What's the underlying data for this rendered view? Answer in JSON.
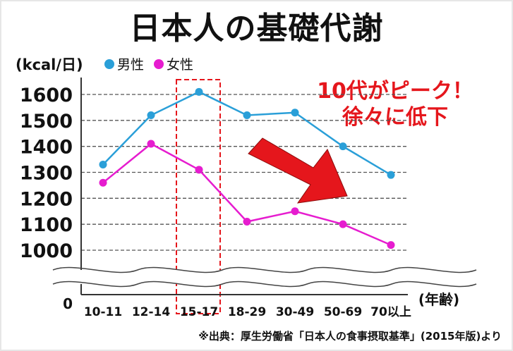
{
  "title": "日本人の基礎代謝",
  "unit_label": "(kcal/日)",
  "legend": [
    {
      "label": "男性",
      "color": "#2a9fd8"
    },
    {
      "label": "女性",
      "color": "#e61ccf"
    }
  ],
  "callout": {
    "line1": "10代がピーク！",
    "line2": "徐々に低下",
    "color": "#e5161c"
  },
  "source": "※出典：厚生労働省「日本人の食事摂取基準」(2015年版)より",
  "chart_data": {
    "type": "line",
    "title": "日本人の基礎代謝",
    "xlabel": "(年齢)",
    "ylabel": "(kcal/日)",
    "categories": [
      "10-11",
      "12-14",
      "15-17",
      "18-29",
      "30-49",
      "50-69",
      "70以上"
    ],
    "series": [
      {
        "name": "男性",
        "color": "#2a9fd8",
        "values": [
          1330,
          1520,
          1610,
          1520,
          1530,
          1400,
          1290
        ]
      },
      {
        "name": "女性",
        "color": "#e61ccf",
        "values": [
          1260,
          1410,
          1310,
          1110,
          1150,
          1100,
          1020
        ]
      }
    ],
    "y_ticks": [
      1000,
      1100,
      1200,
      1300,
      1400,
      1500,
      1600
    ],
    "y_zero_label": "0",
    "ylim": [
      1000,
      1600
    ],
    "axis_break": true,
    "highlight_category": "15-17",
    "grid": "horizontal dashed"
  }
}
